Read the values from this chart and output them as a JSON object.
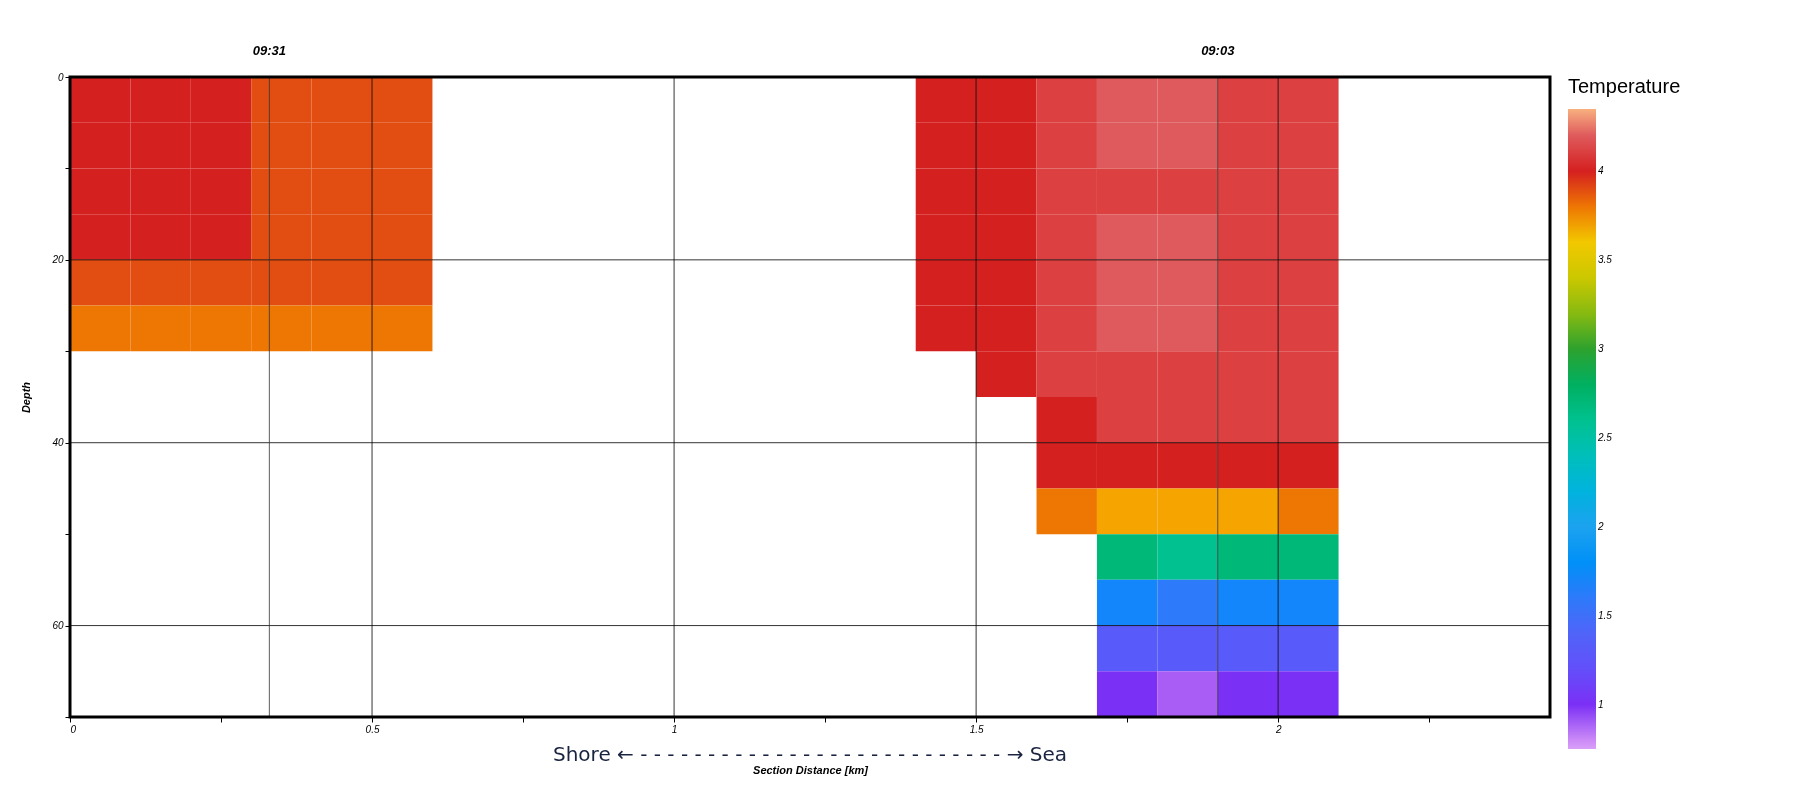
{
  "chart_data": {
    "type": "heatmap",
    "xlabel": "Section Distance [km]",
    "ylabel": "Depth",
    "clabel": "Temperature",
    "x": [
      0.05,
      0.15,
      0.25,
      0.35,
      0.45,
      0.55,
      0.65,
      0.75,
      0.85,
      0.95,
      1.05,
      1.15,
      1.25,
      1.35,
      1.45,
      1.55,
      1.65,
      1.75,
      1.85,
      1.95,
      2.05,
      2.15,
      2.25,
      2.35
    ],
    "y": [
      2.5,
      7.5,
      12.5,
      17.5,
      22.5,
      27.5,
      32.5,
      37.5,
      42.5,
      47.5,
      52.5,
      57.5,
      62.5,
      67.5
    ],
    "cells": [
      [
        4.0,
        4.0,
        4.0,
        3.9,
        3.9,
        3.9,
        null,
        null,
        null,
        null,
        null,
        null,
        null,
        null,
        4.0,
        4.0,
        4.1,
        4.2,
        4.2,
        4.1,
        4.1,
        null,
        null,
        null
      ],
      [
        4.0,
        4.0,
        4.0,
        3.9,
        3.9,
        3.9,
        null,
        null,
        null,
        null,
        null,
        null,
        null,
        null,
        4.0,
        4.0,
        4.1,
        4.2,
        4.2,
        4.1,
        4.1,
        null,
        null,
        null
      ],
      [
        4.0,
        4.0,
        4.0,
        3.9,
        3.9,
        3.9,
        null,
        null,
        null,
        null,
        null,
        null,
        null,
        null,
        4.0,
        4.0,
        4.1,
        4.1,
        4.1,
        4.1,
        4.1,
        null,
        null,
        null
      ],
      [
        4.0,
        4.0,
        4.0,
        3.9,
        3.9,
        3.9,
        null,
        null,
        null,
        null,
        null,
        null,
        null,
        null,
        4.0,
        4.0,
        4.1,
        4.2,
        4.2,
        4.1,
        4.1,
        null,
        null,
        null
      ],
      [
        3.9,
        3.9,
        3.9,
        3.9,
        3.9,
        3.9,
        null,
        null,
        null,
        null,
        null,
        null,
        null,
        null,
        4.0,
        4.0,
        4.1,
        4.2,
        4.2,
        4.1,
        4.1,
        null,
        null,
        null
      ],
      [
        3.8,
        3.8,
        3.8,
        3.8,
        3.8,
        3.8,
        null,
        null,
        null,
        null,
        null,
        null,
        null,
        null,
        4.0,
        4.0,
        4.1,
        4.2,
        4.2,
        4.1,
        4.1,
        null,
        null,
        null
      ],
      [
        null,
        null,
        null,
        null,
        null,
        null,
        null,
        null,
        null,
        null,
        null,
        null,
        null,
        null,
        null,
        4.0,
        4.1,
        4.1,
        4.1,
        4.1,
        4.1,
        null,
        null,
        null
      ],
      [
        null,
        null,
        null,
        null,
        null,
        null,
        null,
        null,
        null,
        null,
        null,
        null,
        null,
        null,
        null,
        null,
        4.0,
        4.1,
        4.1,
        4.1,
        4.1,
        null,
        null,
        null
      ],
      [
        null,
        null,
        null,
        null,
        null,
        null,
        null,
        null,
        null,
        null,
        null,
        null,
        null,
        null,
        null,
        null,
        4.0,
        4.0,
        4.0,
        4.0,
        4.0,
        null,
        null,
        null
      ],
      [
        null,
        null,
        null,
        null,
        null,
        null,
        null,
        null,
        null,
        null,
        null,
        null,
        null,
        null,
        null,
        null,
        3.8,
        3.7,
        3.7,
        3.7,
        3.8,
        null,
        null,
        null
      ],
      [
        null,
        null,
        null,
        null,
        null,
        null,
        null,
        null,
        null,
        null,
        null,
        null,
        null,
        null,
        null,
        null,
        null,
        2.7,
        2.6,
        2.7,
        2.7,
        null,
        null,
        null
      ],
      [
        null,
        null,
        null,
        null,
        null,
        null,
        null,
        null,
        null,
        null,
        null,
        null,
        null,
        null,
        null,
        null,
        null,
        1.7,
        1.6,
        1.7,
        1.7,
        null,
        null,
        null
      ],
      [
        null,
        null,
        null,
        null,
        null,
        null,
        null,
        null,
        null,
        null,
        null,
        null,
        null,
        null,
        null,
        null,
        null,
        1.3,
        1.3,
        1.3,
        1.3,
        null,
        null,
        null
      ],
      [
        null,
        null,
        null,
        null,
        null,
        null,
        null,
        null,
        null,
        null,
        null,
        null,
        null,
        null,
        null,
        null,
        null,
        1.0,
        0.9,
        1.0,
        1.0,
        null,
        null,
        null
      ]
    ],
    "xlim": [
      0,
      2.45
    ],
    "xticks": [
      0,
      {
        "value": 0.25,
        "label": null
      },
      0.5,
      {
        "value": 0.75,
        "label": null
      },
      1,
      {
        "value": 1.25,
        "label": null
      },
      1.5,
      {
        "value": 1.75,
        "label": null
      },
      2,
      {
        "value": 2.25,
        "label": null
      }
    ],
    "ylim": [
      70,
      0
    ],
    "yticks": [
      0,
      {
        "value": 10,
        "label": null
      },
      20,
      {
        "value": 30,
        "label": null
      },
      40,
      {
        "value": 50,
        "label": null
      },
      60,
      {
        "value": 70,
        "label": null
      }
    ],
    "clim": [
      0.75,
      4.35
    ],
    "cticks": [
      1,
      1.5,
      2,
      2.5,
      3,
      3.5,
      4
    ],
    "grid": true,
    "ref_lines": [
      {
        "axis": "x",
        "value": 0.33
      },
      {
        "axis": "x",
        "value": 1.9
      }
    ],
    "annotations": [
      "09:31",
      "09:03",
      "Shore ← - - - - - - - - - - - - - - - - - - - - - - - - - - - → Sea"
    ]
  }
}
